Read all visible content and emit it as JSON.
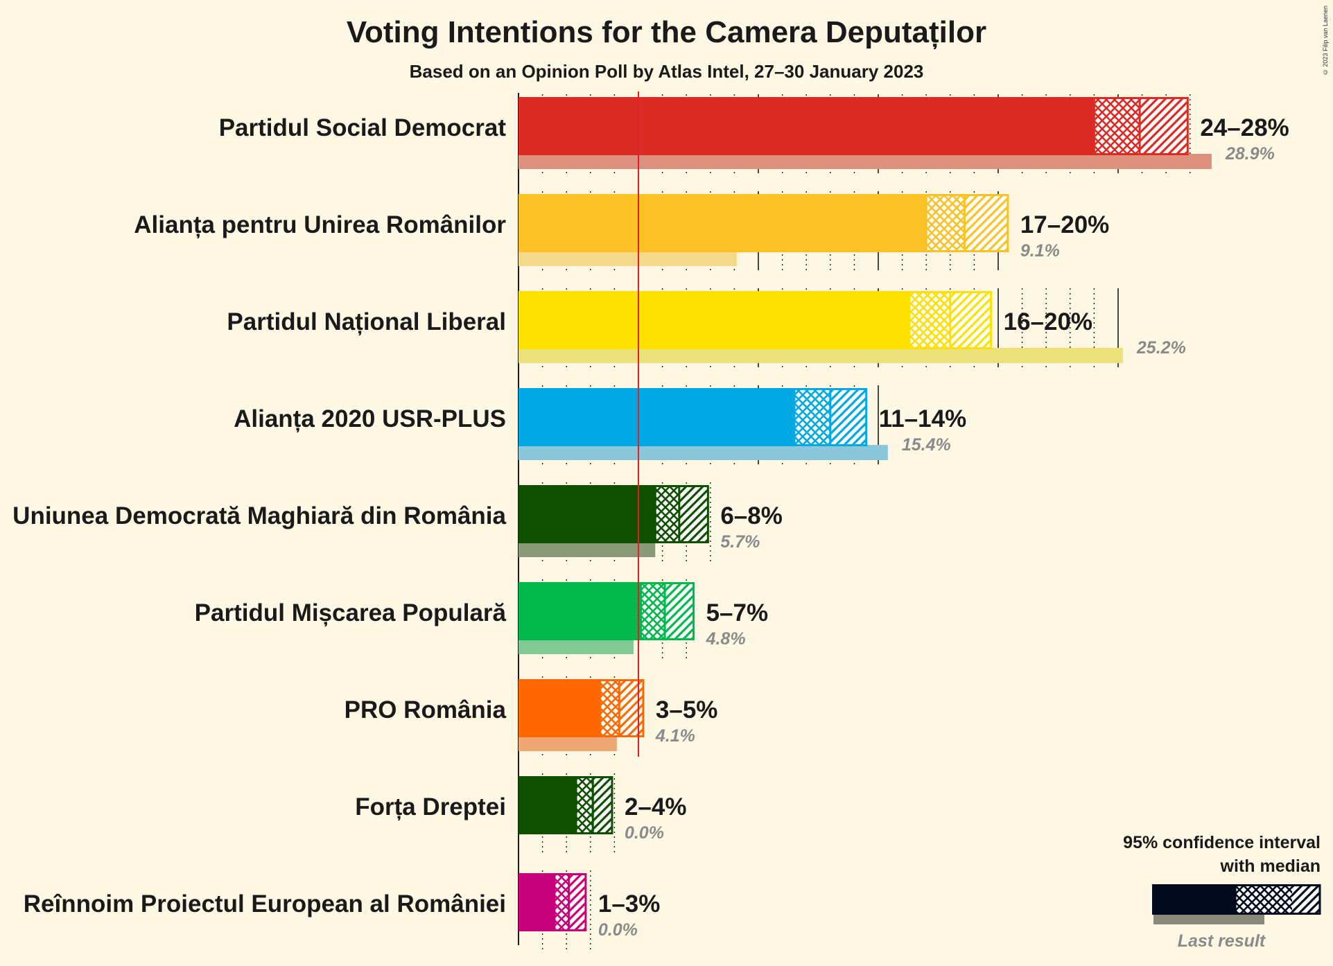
{
  "chart_data": {
    "type": "bar",
    "title": "Voting Intentions for the Camera Deputaților",
    "subtitle": "Based on an Opinion Poll by Atlas Intel, 27–30 January 2023",
    "copyright": "© 2023 Filip van Laenen",
    "threshold": 5,
    "xlim": [
      0,
      30
    ],
    "series": [
      {
        "name": "Partidul Social Democrat",
        "color": "#dc2b25",
        "last_color": "#dc9080",
        "ci_low": 24,
        "median": 25.9,
        "ci_high": 27.9,
        "ci_label": "24–28%",
        "last": 28.9,
        "last_label": "28.9%"
      },
      {
        "name": "Alianța pentru Unirea Românilor",
        "color": "#fcc225",
        "last_color": "#f5d98a",
        "ci_low": 17,
        "median": 18.6,
        "ci_high": 20.4,
        "ci_label": "17–20%",
        "last": 9.1,
        "last_label": "9.1%"
      },
      {
        "name": "Partidul Național Liberal",
        "color": "#ffe000",
        "last_color": "#ece07a",
        "ci_low": 16.3,
        "median": 18,
        "ci_high": 19.7,
        "ci_label": "16–20%",
        "last": 25.2,
        "last_label": "25.2%"
      },
      {
        "name": "Alianța 2020 USR-PLUS",
        "color": "#00a8e6",
        "last_color": "#8bc7d8",
        "ci_low": 11.5,
        "median": 13,
        "ci_high": 14.5,
        "ci_label": "11–14%",
        "last": 15.4,
        "last_label": "15.4%"
      },
      {
        "name": "Uniunea Democrată Maghiară din România",
        "color": "#0f5000",
        "last_color": "#8a9a78",
        "ci_low": 5.7,
        "median": 6.7,
        "ci_high": 7.9,
        "ci_label": "6–8%",
        "last": 5.7,
        "last_label": "5.7%"
      },
      {
        "name": "Partidul Mișcarea Populară",
        "color": "#00b84c",
        "last_color": "#82c996",
        "ci_low": 5.1,
        "median": 6.1,
        "ci_high": 7.3,
        "ci_label": "5–7%",
        "last": 4.8,
        "last_label": "4.8%"
      },
      {
        "name": "PRO România",
        "color": "#ff6a00",
        "last_color": "#eea775",
        "ci_low": 3.4,
        "median": 4.2,
        "ci_high": 5.2,
        "ci_label": "3–5%",
        "last": 4.1,
        "last_label": "4.1%"
      },
      {
        "name": "Forța Dreptei",
        "color": "#0f5000",
        "last_color": "#8a9a78",
        "ci_low": 2.4,
        "median": 3.1,
        "ci_high": 3.9,
        "ci_label": "2–4%",
        "last": 0.0,
        "last_label": "0.0%"
      },
      {
        "name": "Reînnoim Proiectul European al României",
        "color": "#c8007a",
        "last_color": "#d98ab8",
        "ci_low": 1.5,
        "median": 2.1,
        "ci_high": 2.8,
        "ci_label": "1–3%",
        "last": 0.0,
        "last_label": "0.0%"
      }
    ],
    "legend": {
      "line1": "95% confidence interval",
      "line2": "with median",
      "last_result": "Last result",
      "placement": "bottom-right",
      "color": "#020a1e",
      "last_color": "#8a8a7a"
    }
  }
}
